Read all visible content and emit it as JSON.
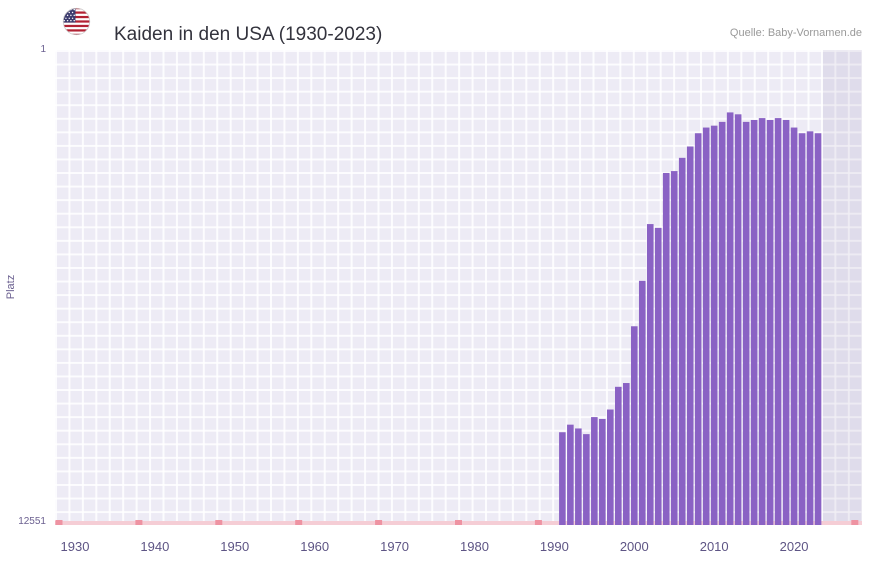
{
  "header": {
    "title": "Kaiden in den USA (1930-2023)",
    "source": "Quelle: Baby-Vornamen.de",
    "flag_icon": "usa-flag"
  },
  "chart": {
    "y_axis_title": "Platz",
    "y_tick_top": "1",
    "y_tick_bottom": "12551"
  },
  "chart_data": {
    "type": "bar",
    "title": "Kaiden in den USA (1930-2023)",
    "xlabel": "",
    "ylabel": "Platz",
    "y_axis": {
      "min": 1,
      "max": 12551,
      "inverted": true,
      "ticks": [
        "1",
        "12551"
      ]
    },
    "x_domain": [
      1927.5,
      2028.5
    ],
    "x_ticks": [
      1930,
      1940,
      1950,
      1960,
      1970,
      1980,
      1990,
      2000,
      2010,
      2020
    ],
    "years": [
      1991,
      1992,
      1993,
      1994,
      1995,
      1996,
      1997,
      1998,
      1999,
      2000,
      2001,
      2002,
      2003,
      2004,
      2005,
      2006,
      2007,
      2008,
      2009,
      2010,
      2011,
      2012,
      2013,
      2014,
      2015,
      2016,
      2017,
      2018,
      2019,
      2020,
      2021,
      2022,
      2023
    ],
    "values": [
      10100,
      9900,
      10000,
      10150,
      9700,
      9750,
      9500,
      8900,
      8800,
      7300,
      6100,
      4600,
      4700,
      3250,
      3200,
      2850,
      2550,
      2200,
      2050,
      2000,
      1900,
      1650,
      1700,
      1900,
      1850,
      1800,
      1850,
      1800,
      1850,
      2050,
      2200,
      2150,
      2200
    ],
    "values_note": "Platz (rank), 1 = best, plotted on inverted axis; estimated from pixel heights",
    "no_data_years_range": [
      1930,
      1990
    ],
    "no_data_marker_years": [
      1928,
      1938,
      1948,
      1958,
      1968,
      1978,
      1988,
      2027.6
    ],
    "future_band_start": 2023.6,
    "legend": "none",
    "grid": "on",
    "colors": {
      "bar": "#8a62c4",
      "plot_bg": "#edebf5",
      "grid_line": "#ffffff",
      "future_band_tint": "rgba(104,92,150,0.10)",
      "no_data_strip": "#f5cdd5",
      "no_data_marker": "#ee93a2",
      "axis_text": "#6b6090",
      "x_tick_text": "#5e5585",
      "title_text": "#33333d",
      "source_text": "#999999"
    }
  }
}
